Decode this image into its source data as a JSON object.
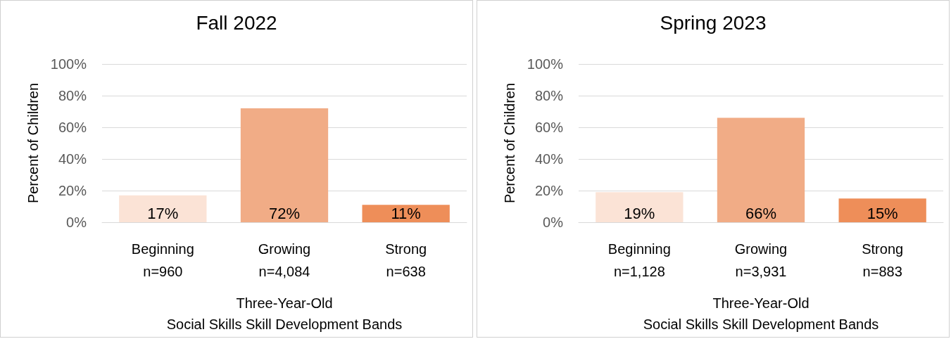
{
  "chart_data": [
    {
      "type": "bar",
      "title": "Fall 2022",
      "xlabel": "Three-Year-Old\nSocial Skills Skill Development Bands",
      "ylabel": "Percent of Children",
      "categories": [
        "Beginning\nn=960",
        "Growing\nn=4,084",
        "Strong\nn=638"
      ],
      "values": [
        17,
        72,
        11
      ],
      "value_labels": [
        "17%",
        "72%",
        "11%"
      ],
      "colors": [
        "#fbe3d6",
        "#f1ac86",
        "#ee8e59"
      ],
      "ylim": [
        0,
        100
      ],
      "yticks": [
        {
          "value": 0,
          "label": "0%"
        },
        {
          "value": 20,
          "label": "20%"
        },
        {
          "value": 40,
          "label": "40%"
        },
        {
          "value": 60,
          "label": "60%"
        },
        {
          "value": 80,
          "label": "80%"
        },
        {
          "value": 100,
          "label": "100%"
        }
      ],
      "grid": "y"
    },
    {
      "type": "bar",
      "title": "Spring 2023",
      "xlabel": "Three-Year-Old\nSocial Skills Skill Development Bands",
      "ylabel": "Percent of Children",
      "categories": [
        "Beginning\nn=1,128",
        "Growing\nn=3,931",
        "Strong\nn=883"
      ],
      "values": [
        19,
        66,
        15
      ],
      "value_labels": [
        "19%",
        "66%",
        "15%"
      ],
      "colors": [
        "#fbe3d6",
        "#f1ac86",
        "#ee8e59"
      ],
      "ylim": [
        0,
        100
      ],
      "yticks": [
        {
          "value": 0,
          "label": "0%"
        },
        {
          "value": 20,
          "label": "20%"
        },
        {
          "value": 40,
          "label": "40%"
        },
        {
          "value": 60,
          "label": "60%"
        },
        {
          "value": 80,
          "label": "80%"
        },
        {
          "value": 100,
          "label": "100%"
        }
      ],
      "grid": "y"
    }
  ]
}
